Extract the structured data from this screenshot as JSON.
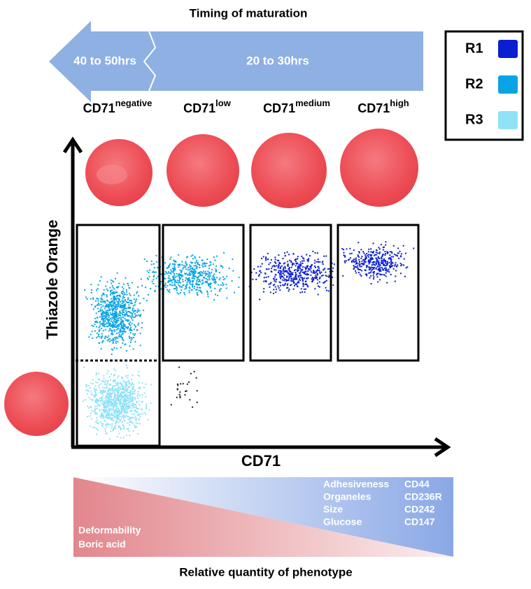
{
  "header": {
    "title": "Timing of maturation",
    "late": "40 to 50hrs",
    "early": "20 to 30hrs"
  },
  "stages": [
    {
      "base": "CD71",
      "sup": "negative"
    },
    {
      "base": "CD71",
      "sup": "low"
    },
    {
      "base": "CD71",
      "sup": "medium"
    },
    {
      "base": "CD71",
      "sup": "high"
    }
  ],
  "legend": [
    {
      "name": "R1",
      "color": "#0a1fd0"
    },
    {
      "name": "R2",
      "color": "#0aa4e4"
    },
    {
      "name": "R3",
      "color": "#8fe2f8"
    }
  ],
  "axes": {
    "y_label": "Thiazole Orange",
    "x_label": "CD71"
  },
  "phenotype": {
    "high_left": [
      "Adhesiveness",
      "Organeles",
      "Size",
      "Glucose"
    ],
    "high_right": [
      "CD44",
      "CD236R",
      "CD242",
      "CD147"
    ],
    "low": [
      "Deformability",
      "Boric acid"
    ],
    "caption": "Relative quantity of phenotype"
  }
}
